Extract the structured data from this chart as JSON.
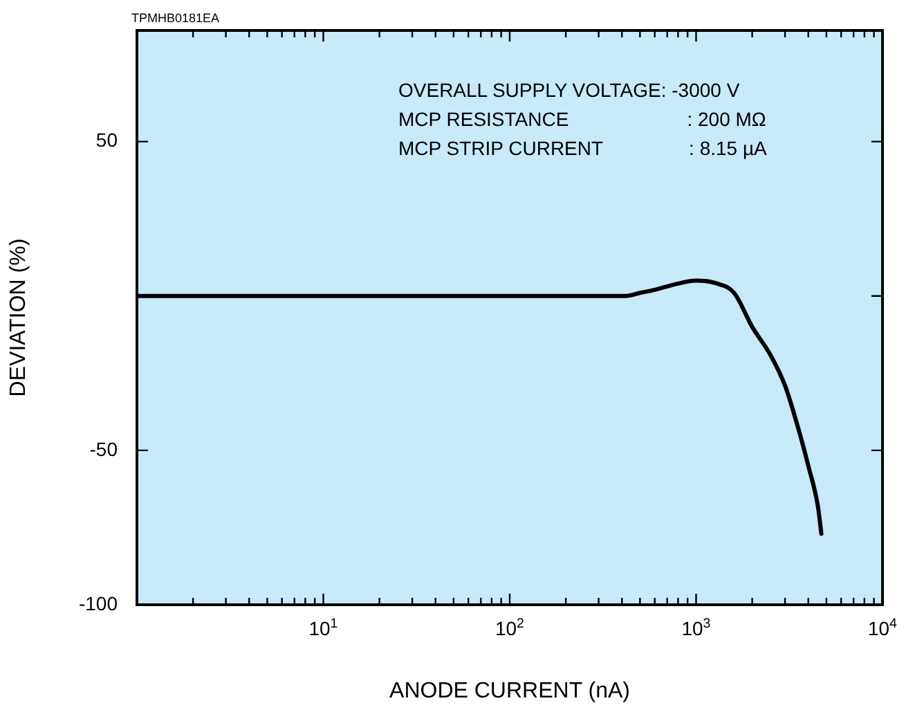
{
  "chart_data": {
    "type": "line",
    "xlabel": "ANODE CURRENT (nA)",
    "ylabel": "DEVIATION (%)",
    "log": "x",
    "xlim": [
      1,
      10000
    ],
    "ylim": [
      -100,
      86
    ],
    "xticks": [
      {
        "value": 2,
        "label": null
      },
      {
        "value": 3,
        "label": null
      },
      {
        "value": 4,
        "label": null
      },
      {
        "value": 5,
        "label": null
      },
      {
        "value": 6,
        "label": null
      },
      {
        "value": 7,
        "label": null
      },
      {
        "value": 8,
        "label": null
      },
      {
        "value": 9,
        "label": null
      },
      {
        "value": 10,
        "label": "10$^{1}$"
      },
      {
        "value": 20,
        "label": null
      },
      {
        "value": 30,
        "label": null
      },
      {
        "value": 40,
        "label": null
      },
      {
        "value": 50,
        "label": null
      },
      {
        "value": 60,
        "label": null
      },
      {
        "value": 70,
        "label": null
      },
      {
        "value": 80,
        "label": null
      },
      {
        "value": 90,
        "label": null
      },
      {
        "value": 100,
        "label": "10$^{2}$"
      },
      {
        "value": 200,
        "label": null
      },
      {
        "value": 300,
        "label": null
      },
      {
        "value": 400,
        "label": null
      },
      {
        "value": 500,
        "label": null
      },
      {
        "value": 600,
        "label": null
      },
      {
        "value": 700,
        "label": null
      },
      {
        "value": 800,
        "label": null
      },
      {
        "value": 900,
        "label": null
      },
      {
        "value": 1000,
        "label": "10$^{3}$"
      },
      {
        "value": 2000,
        "label": null
      },
      {
        "value": 3000,
        "label": null
      },
      {
        "value": 4000,
        "label": null
      },
      {
        "value": 5000,
        "label": null
      },
      {
        "value": 6000,
        "label": null
      },
      {
        "value": 7000,
        "label": null
      },
      {
        "value": 8000,
        "label": null
      },
      {
        "value": 9000,
        "label": null
      },
      {
        "value": 10000,
        "label": "10$^{4}$"
      }
    ],
    "yticks": [
      -100,
      -50,
      {
        "value": 0,
        "label": null
      },
      50
    ],
    "grid": false,
    "legend": false,
    "marker": "none",
    "line_style": "solid",
    "annotations": [
      "TPMHB0181EA",
      "OVERALL SUPPLY VOLTAGE: -3000 V",
      "MCP RESISTANCE                      : 200 MΩ",
      "MCP STRIP CURRENT                : 8.15 µA"
    ],
    "series": [
      {
        "color": "#000000",
        "x": [
          1,
          420,
          500,
          600,
          800,
          1000,
          1300,
          1600,
          2000,
          2500,
          3000,
          3500,
          4000,
          4500,
          4700
        ],
        "values": [
          0,
          0,
          1,
          2,
          4,
          5,
          4,
          1,
          -10,
          -19,
          -29,
          -42,
          -55,
          -68,
          -77
        ]
      }
    ]
  }
}
